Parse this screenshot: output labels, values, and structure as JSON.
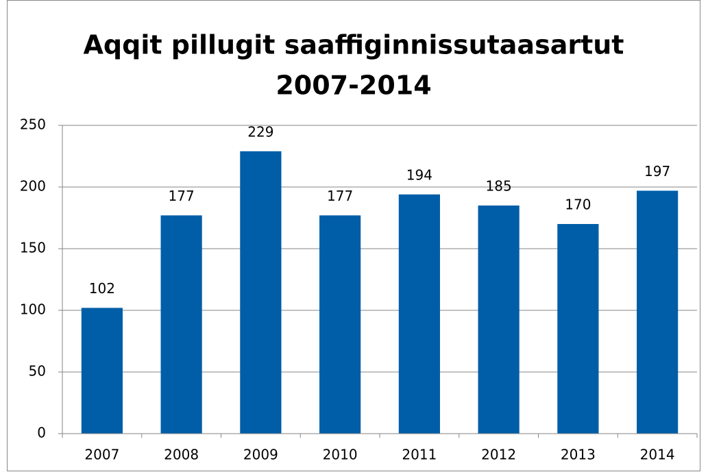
{
  "chart_data": {
    "type": "bar",
    "title": [
      "Aqqit pillugit saaffiginnissutaasartut",
      "2007-2014"
    ],
    "categories": [
      "2007",
      "2008",
      "2009",
      "2010",
      "2011",
      "2012",
      "2013",
      "2014"
    ],
    "values": [
      102,
      177,
      229,
      177,
      194,
      185,
      170,
      197
    ],
    "color": "#005ea8",
    "ylim": [
      0,
      250
    ],
    "yticks": [
      0,
      50,
      100,
      150,
      200,
      250
    ],
    "grid": true
  }
}
